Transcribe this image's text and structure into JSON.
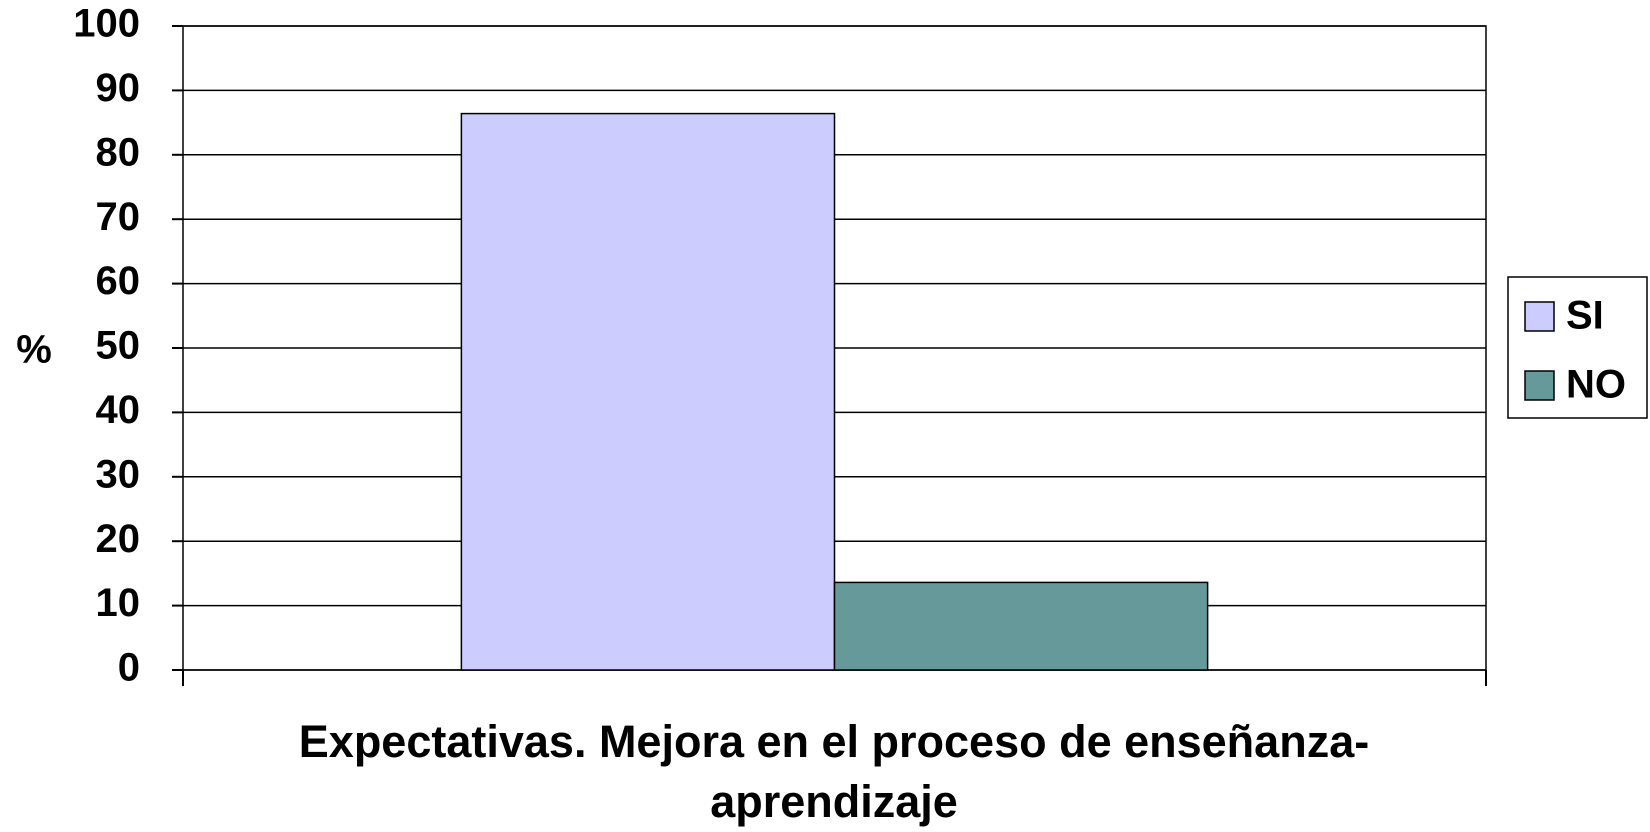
{
  "chart_data": {
    "type": "bar",
    "x_label": "Expectativas. Mejora en el proceso de enseñanza-aprendizaje",
    "y_label": "%",
    "categories": [
      null
    ],
    "series": [
      {
        "name": "SI",
        "color": "#ccccff",
        "values": [
          86.4
        ]
      },
      {
        "name": "NO",
        "color": "#669999",
        "values": [
          13.6
        ]
      }
    ],
    "ylim": [
      0,
      100
    ],
    "yticks": [
      0,
      10,
      20,
      30,
      40,
      50,
      60,
      70,
      80,
      90,
      100
    ],
    "grid": true,
    "legend": "right"
  }
}
